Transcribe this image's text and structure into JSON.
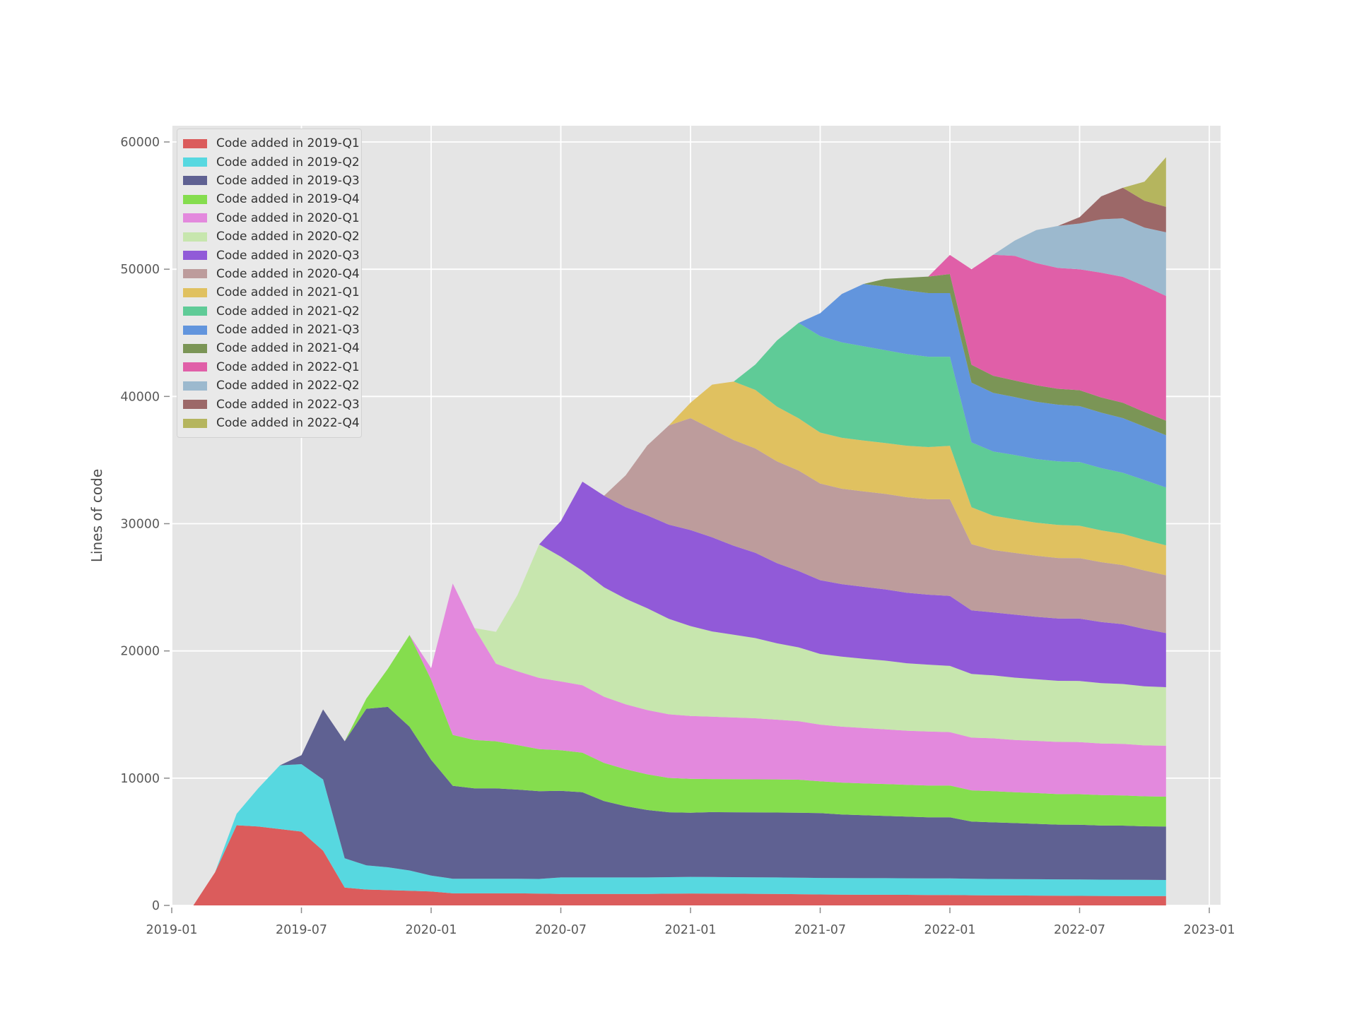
{
  "figure": {
    "background": "#ffffff",
    "plot_background": "#e5e5e5",
    "grid_color": "#ffffff",
    "tick_mark_color": "#8a8a8a",
    "tick_label_color": "#595959",
    "axis_label_color": "#4d4d4d"
  },
  "chart_data": {
    "type": "area",
    "stacked": true,
    "title": "",
    "xlabel": "",
    "ylabel": "Lines of code",
    "legend_position": "upper left",
    "grid": true,
    "ylim": [
      0,
      61400
    ],
    "xlim_months_from_2019_01": [
      0,
      48.54
    ],
    "y_ticks": [
      0,
      10000,
      20000,
      30000,
      40000,
      50000,
      60000
    ],
    "y_tick_labels": [
      "0",
      "10000",
      "20000",
      "30000",
      "40000",
      "50000",
      "60000"
    ],
    "x_tick_months": [
      0,
      6,
      12,
      18,
      24,
      30,
      36,
      42,
      48
    ],
    "x_tick_labels": [
      "2019-01",
      "2019-07",
      "2020-01",
      "2020-07",
      "2021-01",
      "2021-07",
      "2022-01",
      "2022-07",
      "2023-01"
    ],
    "x": [
      "2019-02",
      "2019-03",
      "2019-04",
      "2019-05",
      "2019-06",
      "2019-07",
      "2019-08",
      "2019-09",
      "2019-10",
      "2019-11",
      "2019-12",
      "2020-01",
      "2020-02",
      "2020-03",
      "2020-04",
      "2020-05",
      "2020-06",
      "2020-07",
      "2020-08",
      "2020-09",
      "2020-10",
      "2020-11",
      "2020-12",
      "2021-01",
      "2021-02",
      "2021-03",
      "2021-04",
      "2021-05",
      "2021-06",
      "2021-07",
      "2021-08",
      "2021-09",
      "2021-10",
      "2021-11",
      "2021-12",
      "2022-01",
      "2022-02",
      "2022-03",
      "2022-04",
      "2022-05",
      "2022-06",
      "2022-07",
      "2022-08",
      "2022-09",
      "2022-10",
      "2022-11"
    ],
    "series": [
      {
        "name": "Code added in 2019-Q1",
        "color": "#db5c5c",
        "values": [
          0,
          2600,
          6300,
          6200,
          6000,
          5800,
          4300,
          1400,
          1250,
          1200,
          1150,
          1100,
          950,
          950,
          950,
          950,
          930,
          900,
          900,
          900,
          900,
          900,
          920,
          940,
          930,
          920,
          910,
          900,
          880,
          860,
          850,
          840,
          840,
          830,
          820,
          820,
          800,
          790,
          780,
          770,
          760,
          750,
          745,
          740,
          735,
          730
        ]
      },
      {
        "name": "Code added in 2019-Q2",
        "color": "#57d8e0",
        "values": [
          0,
          0,
          900,
          3000,
          5000,
          5300,
          5600,
          2300,
          1900,
          1800,
          1600,
          1250,
          1150,
          1150,
          1150,
          1150,
          1150,
          1300,
          1300,
          1300,
          1300,
          1300,
          1300,
          1300,
          1300,
          1300,
          1300,
          1300,
          1300,
          1300,
          1300,
          1300,
          1300,
          1300,
          1300,
          1300,
          1290,
          1290,
          1290,
          1290,
          1290,
          1290,
          1280,
          1280,
          1280,
          1270
        ]
      },
      {
        "name": "Code added in 2019-Q3",
        "color": "#5f6192",
        "values": [
          0,
          0,
          0,
          0,
          0,
          700,
          5500,
          9200,
          12300,
          12600,
          11300,
          9100,
          7300,
          7100,
          7100,
          7000,
          6900,
          6800,
          6700,
          6000,
          5600,
          5300,
          5100,
          5050,
          5100,
          5100,
          5100,
          5100,
          5100,
          5100,
          5000,
          4950,
          4900,
          4850,
          4800,
          4800,
          4500,
          4450,
          4400,
          4350,
          4300,
          4300,
          4250,
          4250,
          4200,
          4200
        ]
      },
      {
        "name": "Code added in 2019-Q4",
        "color": "#85dd4e",
        "values": [
          0,
          0,
          0,
          0,
          0,
          0,
          0,
          0,
          800,
          3000,
          7200,
          6300,
          4000,
          3800,
          3700,
          3500,
          3300,
          3200,
          3100,
          3000,
          2900,
          2800,
          2700,
          2660,
          2600,
          2600,
          2600,
          2600,
          2600,
          2500,
          2500,
          2500,
          2500,
          2500,
          2500,
          2500,
          2450,
          2450,
          2430,
          2420,
          2400,
          2400,
          2400,
          2380,
          2360,
          2350
        ]
      },
      {
        "name": "Code added in 2020-Q1",
        "color": "#e389dd",
        "values": [
          0,
          0,
          0,
          0,
          0,
          0,
          0,
          0,
          0,
          0,
          0,
          900,
          11900,
          8800,
          6100,
          5800,
          5600,
          5400,
          5300,
          5200,
          5100,
          5050,
          5000,
          4940,
          4900,
          4850,
          4800,
          4700,
          4600,
          4450,
          4400,
          4350,
          4300,
          4250,
          4250,
          4200,
          4150,
          4150,
          4100,
          4100,
          4100,
          4100,
          4050,
          4050,
          4000,
          4000
        ]
      },
      {
        "name": "Code added in 2020-Q2",
        "color": "#c7e6ae",
        "values": [
          0,
          0,
          0,
          0,
          0,
          0,
          0,
          0,
          0,
          0,
          0,
          0,
          0,
          0,
          2500,
          6000,
          10500,
          9800,
          9000,
          8600,
          8300,
          8000,
          7500,
          7060,
          6700,
          6500,
          6300,
          6000,
          5800,
          5550,
          5500,
          5450,
          5400,
          5300,
          5250,
          5200,
          5000,
          4950,
          4900,
          4850,
          4800,
          4800,
          4750,
          4700,
          4650,
          4600
        ]
      },
      {
        "name": "Code added in 2020-Q3",
        "color": "#915ad8",
        "values": [
          0,
          0,
          0,
          0,
          0,
          0,
          0,
          0,
          0,
          0,
          0,
          0,
          0,
          0,
          0,
          0,
          0,
          2800,
          7000,
          7200,
          7200,
          7300,
          7400,
          7550,
          7400,
          7000,
          6700,
          6300,
          6000,
          5800,
          5700,
          5650,
          5600,
          5550,
          5500,
          5500,
          5000,
          4950,
          4950,
          4900,
          4900,
          4900,
          4800,
          4700,
          4500,
          4250
        ]
      },
      {
        "name": "Code added in 2020-Q4",
        "color": "#bd9c9c",
        "values": [
          0,
          0,
          0,
          0,
          0,
          0,
          0,
          0,
          0,
          0,
          0,
          0,
          0,
          0,
          0,
          0,
          0,
          0,
          0,
          0,
          2500,
          5500,
          7800,
          8800,
          8500,
          8300,
          8200,
          8000,
          7900,
          7600,
          7500,
          7500,
          7500,
          7500,
          7500,
          7600,
          5200,
          4900,
          4850,
          4800,
          4750,
          4750,
          4700,
          4650,
          4600,
          4550
        ]
      },
      {
        "name": "Code added in 2021-Q1",
        "color": "#e0c160",
        "values": [
          0,
          0,
          0,
          0,
          0,
          0,
          0,
          0,
          0,
          0,
          0,
          0,
          0,
          0,
          0,
          0,
          0,
          0,
          0,
          0,
          0,
          0,
          0,
          1200,
          3500,
          4600,
          4600,
          4300,
          4100,
          4000,
          4000,
          4000,
          4000,
          4050,
          4100,
          4200,
          2900,
          2700,
          2650,
          2600,
          2600,
          2550,
          2500,
          2450,
          2400,
          2350
        ]
      },
      {
        "name": "Code added in 2021-Q2",
        "color": "#5fcb97",
        "values": [
          0,
          0,
          0,
          0,
          0,
          0,
          0,
          0,
          0,
          0,
          0,
          0,
          0,
          0,
          0,
          0,
          0,
          0,
          0,
          0,
          0,
          0,
          0,
          0,
          0,
          0,
          2000,
          5200,
          7500,
          7580,
          7500,
          7400,
          7300,
          7200,
          7100,
          7000,
          5100,
          5050,
          5050,
          5000,
          5000,
          5000,
          4900,
          4800,
          4700,
          4550
        ]
      },
      {
        "name": "Code added in 2021-Q3",
        "color": "#6295dd",
        "values": [
          0,
          0,
          0,
          0,
          0,
          0,
          0,
          0,
          0,
          0,
          0,
          0,
          0,
          0,
          0,
          0,
          0,
          0,
          0,
          0,
          0,
          0,
          0,
          0,
          0,
          0,
          0,
          0,
          0,
          1800,
          3800,
          4900,
          5000,
          5000,
          5000,
          5000,
          4700,
          4600,
          4550,
          4500,
          4450,
          4400,
          4350,
          4300,
          4200,
          4100
        ]
      },
      {
        "name": "Code added in 2021-Q4",
        "color": "#7b9556",
        "values": [
          0,
          0,
          0,
          0,
          0,
          0,
          0,
          0,
          0,
          0,
          0,
          0,
          0,
          0,
          0,
          0,
          0,
          0,
          0,
          0,
          0,
          0,
          0,
          0,
          0,
          0,
          0,
          0,
          0,
          0,
          0,
          0,
          600,
          1000,
          1300,
          1500,
          1400,
          1350,
          1300,
          1300,
          1250,
          1250,
          1200,
          1200,
          1150,
          1150
        ]
      },
      {
        "name": "Code added in 2022-Q1",
        "color": "#e05fa8",
        "values": [
          0,
          0,
          0,
          0,
          0,
          0,
          0,
          0,
          0,
          0,
          0,
          0,
          0,
          0,
          0,
          0,
          0,
          0,
          0,
          0,
          0,
          0,
          0,
          0,
          0,
          0,
          0,
          0,
          0,
          0,
          0,
          0,
          0,
          0,
          0,
          1500,
          7500,
          9500,
          9800,
          9600,
          9500,
          9500,
          9800,
          9900,
          9900,
          9800
        ]
      },
      {
        "name": "Code added in 2022-Q2",
        "color": "#9cb9ce",
        "values": [
          0,
          0,
          0,
          0,
          0,
          0,
          0,
          0,
          0,
          0,
          0,
          0,
          0,
          0,
          0,
          0,
          0,
          0,
          0,
          0,
          0,
          0,
          0,
          0,
          0,
          0,
          0,
          0,
          0,
          0,
          0,
          0,
          0,
          0,
          0,
          0,
          0,
          0,
          1200,
          2600,
          3300,
          3600,
          4200,
          4600,
          4600,
          5000
        ]
      },
      {
        "name": "Code added in 2022-Q3",
        "color": "#9c6868",
        "values": [
          0,
          0,
          0,
          0,
          0,
          0,
          0,
          0,
          0,
          0,
          0,
          0,
          0,
          0,
          0,
          0,
          0,
          0,
          0,
          0,
          0,
          0,
          0,
          0,
          0,
          0,
          0,
          0,
          0,
          0,
          0,
          0,
          0,
          0,
          0,
          0,
          0,
          0,
          0,
          0,
          0,
          500,
          1800,
          2400,
          2100,
          2000
        ]
      },
      {
        "name": "Code added in 2022-Q4",
        "color": "#b5b55e",
        "values": [
          0,
          0,
          0,
          0,
          0,
          0,
          0,
          0,
          0,
          0,
          0,
          0,
          0,
          0,
          0,
          0,
          0,
          0,
          0,
          0,
          0,
          0,
          0,
          0,
          0,
          0,
          0,
          0,
          0,
          0,
          0,
          0,
          0,
          0,
          0,
          0,
          0,
          0,
          0,
          0,
          0,
          0,
          0,
          0,
          1500,
          3900
        ]
      }
    ]
  }
}
